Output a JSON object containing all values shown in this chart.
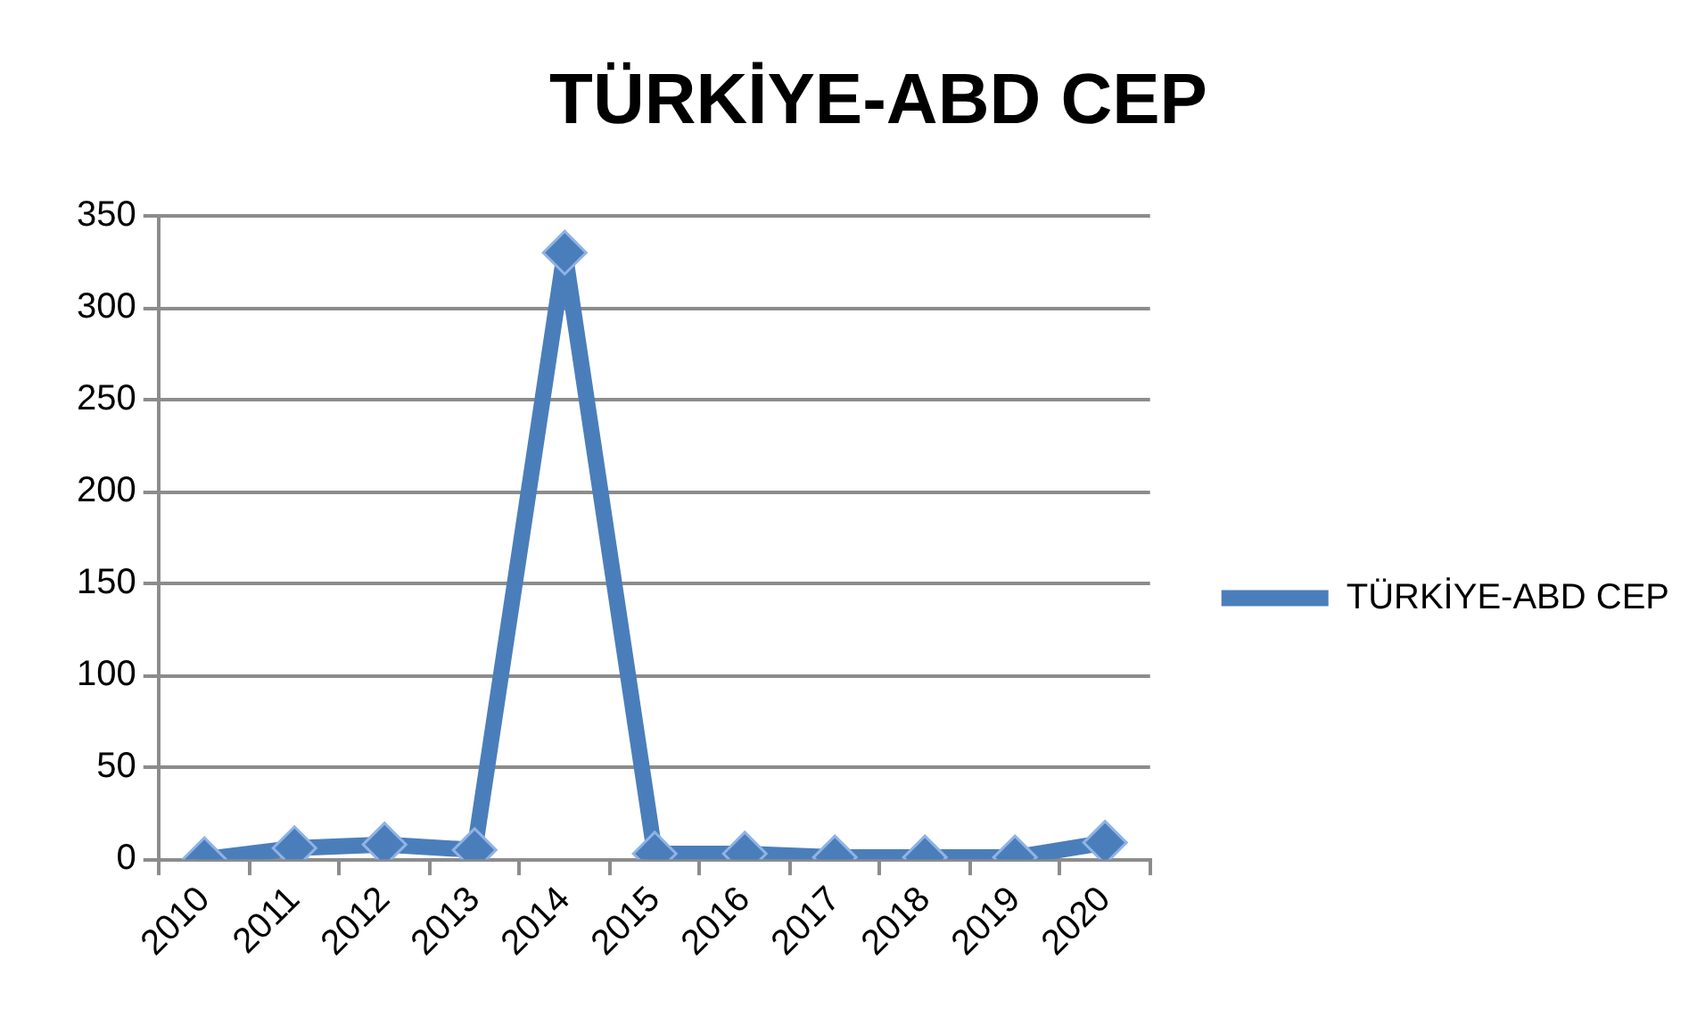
{
  "chart_data": {
    "type": "line",
    "title": "TÜRKİYE-ABD CEP",
    "categories": [
      "2010",
      "2011",
      "2012",
      "2013",
      "2014",
      "2015",
      "2016",
      "2017",
      "2018",
      "2019",
      "2020"
    ],
    "series": [
      {
        "name": "TÜRKİYE-ABD CEP",
        "color": "#4a7ebb",
        "values": [
          0,
          6,
          8,
          5,
          330,
          3,
          3,
          1,
          1,
          1,
          9
        ]
      }
    ],
    "ylim": [
      0,
      350
    ],
    "yticks": [
      0,
      50,
      100,
      150,
      200,
      250,
      300,
      350
    ],
    "grid": "y",
    "legend": "right",
    "marker": "diamond",
    "line_style": "solid"
  }
}
